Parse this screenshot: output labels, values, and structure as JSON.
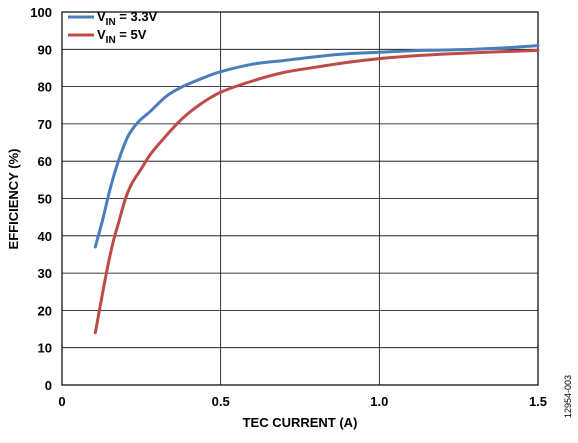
{
  "chart_data": {
    "type": "line",
    "xlabel": "TEC CURRENT (A)",
    "ylabel": "EFFICIENCY (%)",
    "xlim": [
      0,
      1.5
    ],
    "ylim": [
      0,
      100
    ],
    "x_ticks": [
      "0",
      "0.5",
      "1.0",
      "1.5"
    ],
    "x_tick_values": [
      0,
      0.5,
      1.0,
      1.5
    ],
    "y_ticks": [
      "0",
      "10",
      "20",
      "30",
      "40",
      "50",
      "60",
      "70",
      "80",
      "90",
      "100"
    ],
    "y_tick_values": [
      0,
      10,
      20,
      30,
      40,
      50,
      60,
      70,
      80,
      90,
      100
    ],
    "grid": true,
    "legend_position": "top-left",
    "series": [
      {
        "name_main": "V",
        "name_sub": "IN",
        "name_rest": " = 3.3V",
        "color": "#4a7ebb",
        "points": [
          [
            0.105,
            37
          ],
          [
            0.13,
            45
          ],
          [
            0.15,
            52
          ],
          [
            0.17,
            58
          ],
          [
            0.19,
            63
          ],
          [
            0.21,
            67
          ],
          [
            0.24,
            70.5
          ],
          [
            0.28,
            73.5
          ],
          [
            0.33,
            77.5
          ],
          [
            0.38,
            80
          ],
          [
            0.45,
            82.5
          ],
          [
            0.5,
            84
          ],
          [
            0.6,
            86
          ],
          [
            0.7,
            87
          ],
          [
            0.8,
            88
          ],
          [
            0.9,
            88.8
          ],
          [
            1.0,
            89.2
          ],
          [
            1.1,
            89.6
          ],
          [
            1.2,
            89.8
          ],
          [
            1.3,
            90
          ],
          [
            1.4,
            90.4
          ],
          [
            1.5,
            91
          ]
        ]
      },
      {
        "name_main": "V",
        "name_sub": "IN",
        "name_rest": " = 5V",
        "color": "#be4b48",
        "points": [
          [
            0.105,
            14
          ],
          [
            0.12,
            21
          ],
          [
            0.14,
            30
          ],
          [
            0.16,
            38
          ],
          [
            0.18,
            44
          ],
          [
            0.2,
            50
          ],
          [
            0.22,
            54
          ],
          [
            0.25,
            58
          ],
          [
            0.28,
            62
          ],
          [
            0.33,
            67
          ],
          [
            0.38,
            71.5
          ],
          [
            0.44,
            75.5
          ],
          [
            0.5,
            78.5
          ],
          [
            0.6,
            81.5
          ],
          [
            0.7,
            83.8
          ],
          [
            0.8,
            85.2
          ],
          [
            0.9,
            86.5
          ],
          [
            1.0,
            87.5
          ],
          [
            1.1,
            88.2
          ],
          [
            1.2,
            88.7
          ],
          [
            1.3,
            89.1
          ],
          [
            1.4,
            89.4
          ],
          [
            1.5,
            89.7
          ]
        ]
      }
    ]
  },
  "figure_id": "12954-003"
}
